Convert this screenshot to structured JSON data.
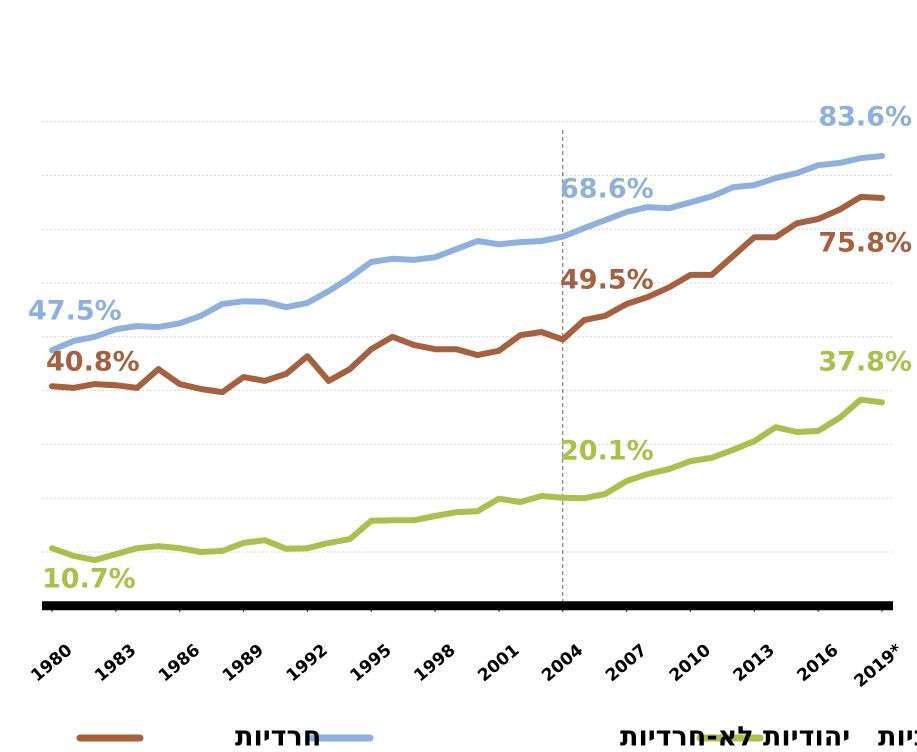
{
  "chart_data": {
    "type": "line",
    "x": [
      1980,
      1981,
      1982,
      1983,
      1984,
      1985,
      1986,
      1987,
      1988,
      1989,
      1990,
      1991,
      1992,
      1993,
      1994,
      1995,
      1996,
      1997,
      1998,
      1999,
      2000,
      2001,
      2002,
      2003,
      2004,
      2005,
      2006,
      2007,
      2008,
      2009,
      2010,
      2011,
      2012,
      2013,
      2014,
      2015,
      2016,
      2017,
      2018,
      2019
    ],
    "series": [
      {
        "name": "ערביות",
        "color": "#a9c04a",
        "values": [
          10.7,
          9.3,
          8.5,
          9.6,
          10.7,
          11.1,
          10.7,
          10.0,
          10.2,
          11.7,
          12.2,
          10.6,
          10.7,
          11.7,
          12.4,
          15.8,
          15.9,
          15.9,
          16.7,
          17.4,
          17.6,
          19.9,
          19.3,
          20.4,
          20.1,
          20.0,
          20.8,
          23.2,
          24.5,
          25.4,
          26.9,
          27.5,
          29.0,
          30.6,
          33.2,
          32.3,
          32.5,
          34.9,
          38.3,
          37.8
        ],
        "value_labels": [
          "10.7%",
          null,
          null,
          null,
          null,
          null,
          null,
          null,
          null,
          null,
          null,
          null,
          null,
          null,
          null,
          null,
          null,
          null,
          null,
          null,
          null,
          null,
          null,
          null,
          "20.1%",
          null,
          null,
          null,
          null,
          null,
          null,
          null,
          null,
          null,
          null,
          null,
          null,
          null,
          null,
          "37.8%"
        ]
      },
      {
        "name": "יהודיות לא-חרדיות",
        "color": "#8fb0dc",
        "values": [
          47.5,
          49.2,
          50.0,
          51.4,
          52.0,
          51.8,
          52.5,
          53.9,
          56.1,
          56.6,
          56.5,
          55.5,
          56.3,
          58.5,
          61.0,
          63.9,
          64.5,
          64.3,
          64.8,
          66.3,
          67.8,
          67.2,
          67.6,
          67.8,
          68.6,
          70.2,
          71.7,
          73.2,
          74.1,
          73.9,
          75.0,
          76.1,
          77.8,
          78.2,
          79.5,
          80.4,
          81.9,
          82.3,
          83.2,
          83.6
        ],
        "value_labels": [
          "47.5%",
          null,
          null,
          null,
          null,
          null,
          null,
          null,
          null,
          null,
          null,
          null,
          null,
          null,
          null,
          null,
          null,
          null,
          null,
          null,
          null,
          null,
          null,
          null,
          "68.6%",
          null,
          null,
          null,
          null,
          null,
          null,
          null,
          null,
          null,
          null,
          null,
          null,
          null,
          null,
          "83.6%"
        ]
      },
      {
        "name": "חרדיות",
        "color": "#a5603f",
        "values": [
          40.8,
          40.5,
          41.2,
          41.0,
          40.5,
          44.0,
          41.2,
          40.3,
          39.7,
          42.5,
          41.8,
          43.1,
          46.4,
          41.8,
          44.0,
          47.7,
          50.0,
          48.5,
          47.7,
          47.7,
          46.6,
          47.4,
          50.3,
          50.9,
          49.5,
          53.1,
          53.9,
          56.1,
          57.4,
          59.2,
          61.5,
          61.5,
          65.0,
          68.5,
          68.5,
          71.1,
          71.9,
          73.6,
          76.0,
          75.8
        ],
        "value_labels": [
          "40.8%",
          null,
          null,
          null,
          null,
          null,
          null,
          null,
          null,
          null,
          null,
          null,
          null,
          null,
          null,
          null,
          null,
          null,
          null,
          null,
          null,
          null,
          null,
          null,
          "49.5%",
          null,
          null,
          null,
          null,
          null,
          null,
          null,
          null,
          null,
          null,
          null,
          null,
          null,
          null,
          "75.8%"
        ]
      }
    ],
    "xlim": [
      1980,
      2019
    ],
    "xticks": [
      1980,
      1983,
      1986,
      1989,
      1992,
      1995,
      1998,
      2001,
      2004,
      2007,
      2010,
      2013,
      2016,
      {
        "value": 2019,
        "label": "2019*"
      }
    ],
    "ylim": [
      0,
      90
    ],
    "yticks": [
      10,
      20,
      30,
      40,
      50,
      60,
      70,
      80,
      90
    ],
    "grid": true,
    "vline": 2004
  }
}
